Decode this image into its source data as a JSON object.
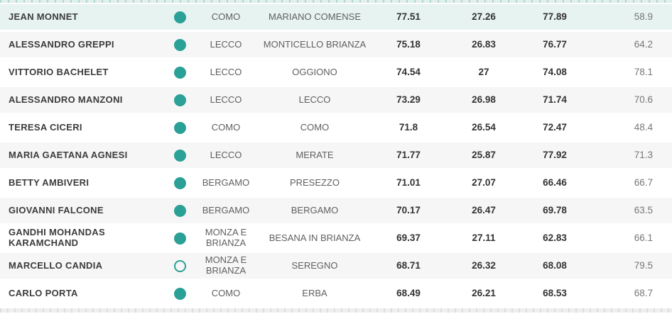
{
  "colors": {
    "accent_teal": "#2aa096",
    "row_highlight": "#e7f3f1",
    "row_stripe": "#f6f6f6"
  },
  "table": {
    "rows": [
      {
        "school": "JEAN MONNET",
        "marker": "filled",
        "province": "COMO",
        "city": "MARIANO COMENSE",
        "score1": "77.51",
        "score2": "27.26",
        "score3": "77.89",
        "score4": "58.9",
        "highlighted": true
      },
      {
        "school": "ALESSANDRO GREPPI",
        "marker": "filled",
        "province": "LECCO",
        "city": "MONTICELLO BRIANZA",
        "score1": "75.18",
        "score2": "26.83",
        "score3": "76.77",
        "score4": "64.2",
        "highlighted": false
      },
      {
        "school": "VITTORIO BACHELET",
        "marker": "filled",
        "province": "LECCO",
        "city": "OGGIONO",
        "score1": "74.54",
        "score2": "27",
        "score3": "74.08",
        "score4": "78.1",
        "highlighted": false
      },
      {
        "school": "ALESSANDRO MANZONI",
        "marker": "filled",
        "province": "LECCO",
        "city": "LECCO",
        "score1": "73.29",
        "score2": "26.98",
        "score3": "71.74",
        "score4": "70.6",
        "highlighted": false
      },
      {
        "school": "TERESA CICERI",
        "marker": "filled",
        "province": "COMO",
        "city": "COMO",
        "score1": "71.8",
        "score2": "26.54",
        "score3": "72.47",
        "score4": "48.4",
        "highlighted": false
      },
      {
        "school": "MARIA GAETANA AGNESI",
        "marker": "filled",
        "province": "LECCO",
        "city": "MERATE",
        "score1": "71.77",
        "score2": "25.87",
        "score3": "77.92",
        "score4": "71.3",
        "highlighted": false
      },
      {
        "school": "BETTY AMBIVERI",
        "marker": "filled",
        "province": "BERGAMO",
        "city": "PRESEZZO",
        "score1": "71.01",
        "score2": "27.07",
        "score3": "66.46",
        "score4": "66.7",
        "highlighted": false
      },
      {
        "school": "GIOVANNI FALCONE",
        "marker": "filled",
        "province": "BERGAMO",
        "city": "BERGAMO",
        "score1": "70.17",
        "score2": "26.47",
        "score3": "69.78",
        "score4": "63.5",
        "highlighted": false
      },
      {
        "school": "GANDHI MOHANDAS KARAMCHAND",
        "marker": "filled",
        "province": "MONZA E BRIANZA",
        "city": "BESANA IN BRIANZA",
        "score1": "69.37",
        "score2": "27.11",
        "score3": "62.83",
        "score4": "66.1",
        "highlighted": false
      },
      {
        "school": "MARCELLO CANDIA",
        "marker": "outline",
        "province": "MONZA E BRIANZA",
        "city": "SEREGNO",
        "score1": "68.71",
        "score2": "26.32",
        "score3": "68.08",
        "score4": "79.5",
        "highlighted": false
      },
      {
        "school": "CARLO PORTA",
        "marker": "filled",
        "province": "COMO",
        "city": "ERBA",
        "score1": "68.49",
        "score2": "26.21",
        "score3": "68.53",
        "score4": "68.7",
        "highlighted": false
      }
    ]
  }
}
